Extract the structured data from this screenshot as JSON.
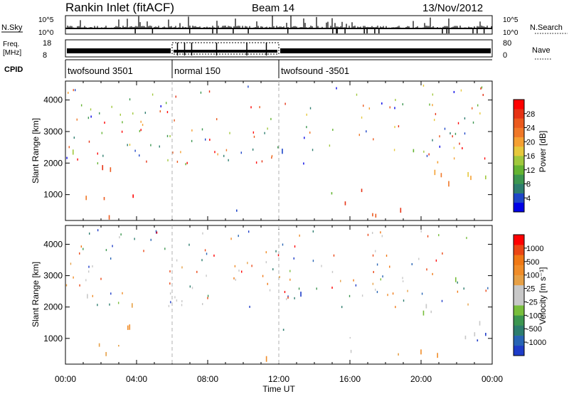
{
  "header": {
    "title": "Rankin Inlet (fitACF)",
    "beam": "Beam 14",
    "date": "13/Nov/2012"
  },
  "strips": {
    "nsky_label": "N.Sky",
    "nsky_ticks": [
      "10^5",
      "10^0"
    ],
    "nsearch_label": "N.Search",
    "freq_label_1": "Freq.",
    "freq_label_2": "[MHz]",
    "freq_ticks": [
      "18",
      "8"
    ],
    "nave_ticks": [
      "80",
      "0"
    ],
    "nave_label": "Nave",
    "cpid_label": "CPID",
    "modes": [
      {
        "name": "twofsound 3501",
        "start_hour": 0,
        "end_hour": 6
      },
      {
        "name": "normal 150",
        "start_hour": 6,
        "end_hour": 12
      },
      {
        "name": "twofsound -3501",
        "start_hour": 12,
        "end_hour": 24
      }
    ]
  },
  "axes": {
    "ylabel": "Slant Range [km]",
    "xlabel": "Time UT",
    "yticks": [
      "4000",
      "3000",
      "2000",
      "1000"
    ],
    "xticks": [
      "00:00",
      "04:00",
      "08:00",
      "12:00",
      "16:00",
      "20:00",
      "00:00"
    ]
  },
  "colorbars": {
    "power": {
      "label": "Power [dB]",
      "ticks": [
        "28",
        "24",
        "20",
        "16",
        "12",
        "8",
        "4"
      ],
      "colors": [
        "#0000e6",
        "#1e46c8",
        "#2d7d6e",
        "#3c9650",
        "#64b432",
        "#a0c83c",
        "#e6c83c",
        "#f5a032",
        "#f07828",
        "#eb5a1e",
        "#e63214",
        "#ff0000"
      ]
    },
    "velocity": {
      "label": "Velocity [m s⁻¹]",
      "ticks": [
        "1000",
        "500",
        "100",
        "25",
        "-25",
        "-100",
        "-500",
        "-1000"
      ],
      "colors": [
        "#1e3cc8",
        "#2864b4",
        "#2d7d6e",
        "#3c9650",
        "#78be3c",
        "#c8c8c8",
        "#c8c8c8",
        "#e6a046",
        "#f08c28",
        "#f07814",
        "#eb4614",
        "#ff0000"
      ]
    }
  },
  "chart_data": [
    {
      "type": "heatmap",
      "title": "Power",
      "xlabel": "Time UT",
      "ylabel": "Slant Range [km]",
      "xlim_hours": [
        0,
        24
      ],
      "ylim_km": [
        180,
        4600
      ],
      "colorbar": "Power [dB]",
      "colorbar_range": [
        0,
        32
      ],
      "patches": [
        {
          "t0": 0.1,
          "t1": 3.9,
          "r0": 600,
          "r1": 2100,
          "value": 26,
          "density": 0.75
        },
        {
          "t0": 0.1,
          "t1": 3.2,
          "r0": 1900,
          "r1": 3200,
          "value": 16,
          "density": 0.25
        },
        {
          "t0": 0.1,
          "t1": 3.0,
          "r0": 200,
          "r1": 550,
          "value": 26,
          "density": 0.45
        },
        {
          "t0": 4.3,
          "t1": 5.6,
          "r0": 200,
          "r1": 700,
          "value": 14,
          "density": 0.5
        },
        {
          "t0": 6.0,
          "t1": 12.0,
          "r0": 200,
          "r1": 550,
          "value": 6,
          "density": 0.35
        },
        {
          "t0": 8.7,
          "t1": 9.3,
          "r0": 1000,
          "r1": 2100,
          "value": 22,
          "density": 0.55
        },
        {
          "t0": 8.0,
          "t1": 8.7,
          "r0": 1500,
          "r1": 2400,
          "value": 10,
          "density": 0.25
        },
        {
          "t0": 12.0,
          "t1": 14.5,
          "r0": 1700,
          "r1": 2600,
          "value": 8,
          "density": 0.35
        },
        {
          "t0": 12.0,
          "t1": 16.0,
          "r0": 900,
          "r1": 1800,
          "value": 12,
          "density": 0.3
        },
        {
          "t0": 14.0,
          "t1": 17.5,
          "r0": 500,
          "r1": 1300,
          "value": 27,
          "density": 0.75
        },
        {
          "t0": 14.0,
          "t1": 24.0,
          "r0": 200,
          "r1": 500,
          "value": 28,
          "density": 0.8
        },
        {
          "t0": 18.5,
          "t1": 23.8,
          "r0": 900,
          "r1": 2200,
          "value": 24,
          "density": 0.7
        },
        {
          "t0": 17.0,
          "t1": 24.0,
          "r0": 1400,
          "r1": 2800,
          "value": 14,
          "density": 0.25
        }
      ]
    },
    {
      "type": "heatmap",
      "title": "Velocity",
      "xlabel": "Time UT",
      "ylabel": "Slant Range [km]",
      "xlim_hours": [
        0,
        24
      ],
      "ylim_km": [
        180,
        4600
      ],
      "colorbar": "Velocity [m s⁻¹]",
      "colorbar_range": [
        -1000,
        1000
      ],
      "patches": [
        {
          "t0": 0.1,
          "t1": 3.9,
          "r0": 600,
          "r1": 2100,
          "value": -300,
          "density": 0.75
        },
        {
          "t0": 0.1,
          "t1": 3.2,
          "r0": 1900,
          "r1": 3200,
          "value": 60,
          "density": 0.25
        },
        {
          "t0": 0.1,
          "t1": 3.0,
          "r0": 200,
          "r1": 550,
          "value": -300,
          "density": 0.45
        },
        {
          "t0": 4.3,
          "t1": 5.6,
          "r0": 200,
          "r1": 700,
          "value": -300,
          "density": 0.5
        },
        {
          "t0": 6.0,
          "t1": 12.0,
          "r0": 200,
          "r1": 550,
          "value": -300,
          "density": 0.35
        },
        {
          "t0": 8.7,
          "t1": 9.3,
          "r0": 1000,
          "r1": 2100,
          "value": 700,
          "density": 0.55
        },
        {
          "t0": 8.0,
          "t1": 8.7,
          "r0": 1500,
          "r1": 2400,
          "value": -300,
          "density": 0.25
        },
        {
          "t0": 12.0,
          "t1": 14.5,
          "r0": 1700,
          "r1": 2600,
          "value": 900,
          "density": 0.4
        },
        {
          "t0": 12.0,
          "t1": 16.0,
          "r0": 900,
          "r1": 1800,
          "value": 600,
          "density": 0.3
        },
        {
          "t0": 14.0,
          "t1": 17.5,
          "r0": 500,
          "r1": 1300,
          "value": 50,
          "density": 0.6
        },
        {
          "t0": 14.0,
          "t1": 24.0,
          "r0": 200,
          "r1": 500,
          "value": -300,
          "density": 0.75
        },
        {
          "t0": 18.5,
          "t1": 23.8,
          "r0": 900,
          "r1": 2200,
          "value": 70,
          "density": 0.65
        },
        {
          "t0": 21.5,
          "t1": 24.0,
          "r0": 800,
          "r1": 1900,
          "value": 800,
          "density": 0.6
        },
        {
          "t0": 17.0,
          "t1": 24.0,
          "r0": 1400,
          "r1": 2800,
          "value": 60,
          "density": 0.25
        }
      ]
    }
  ]
}
